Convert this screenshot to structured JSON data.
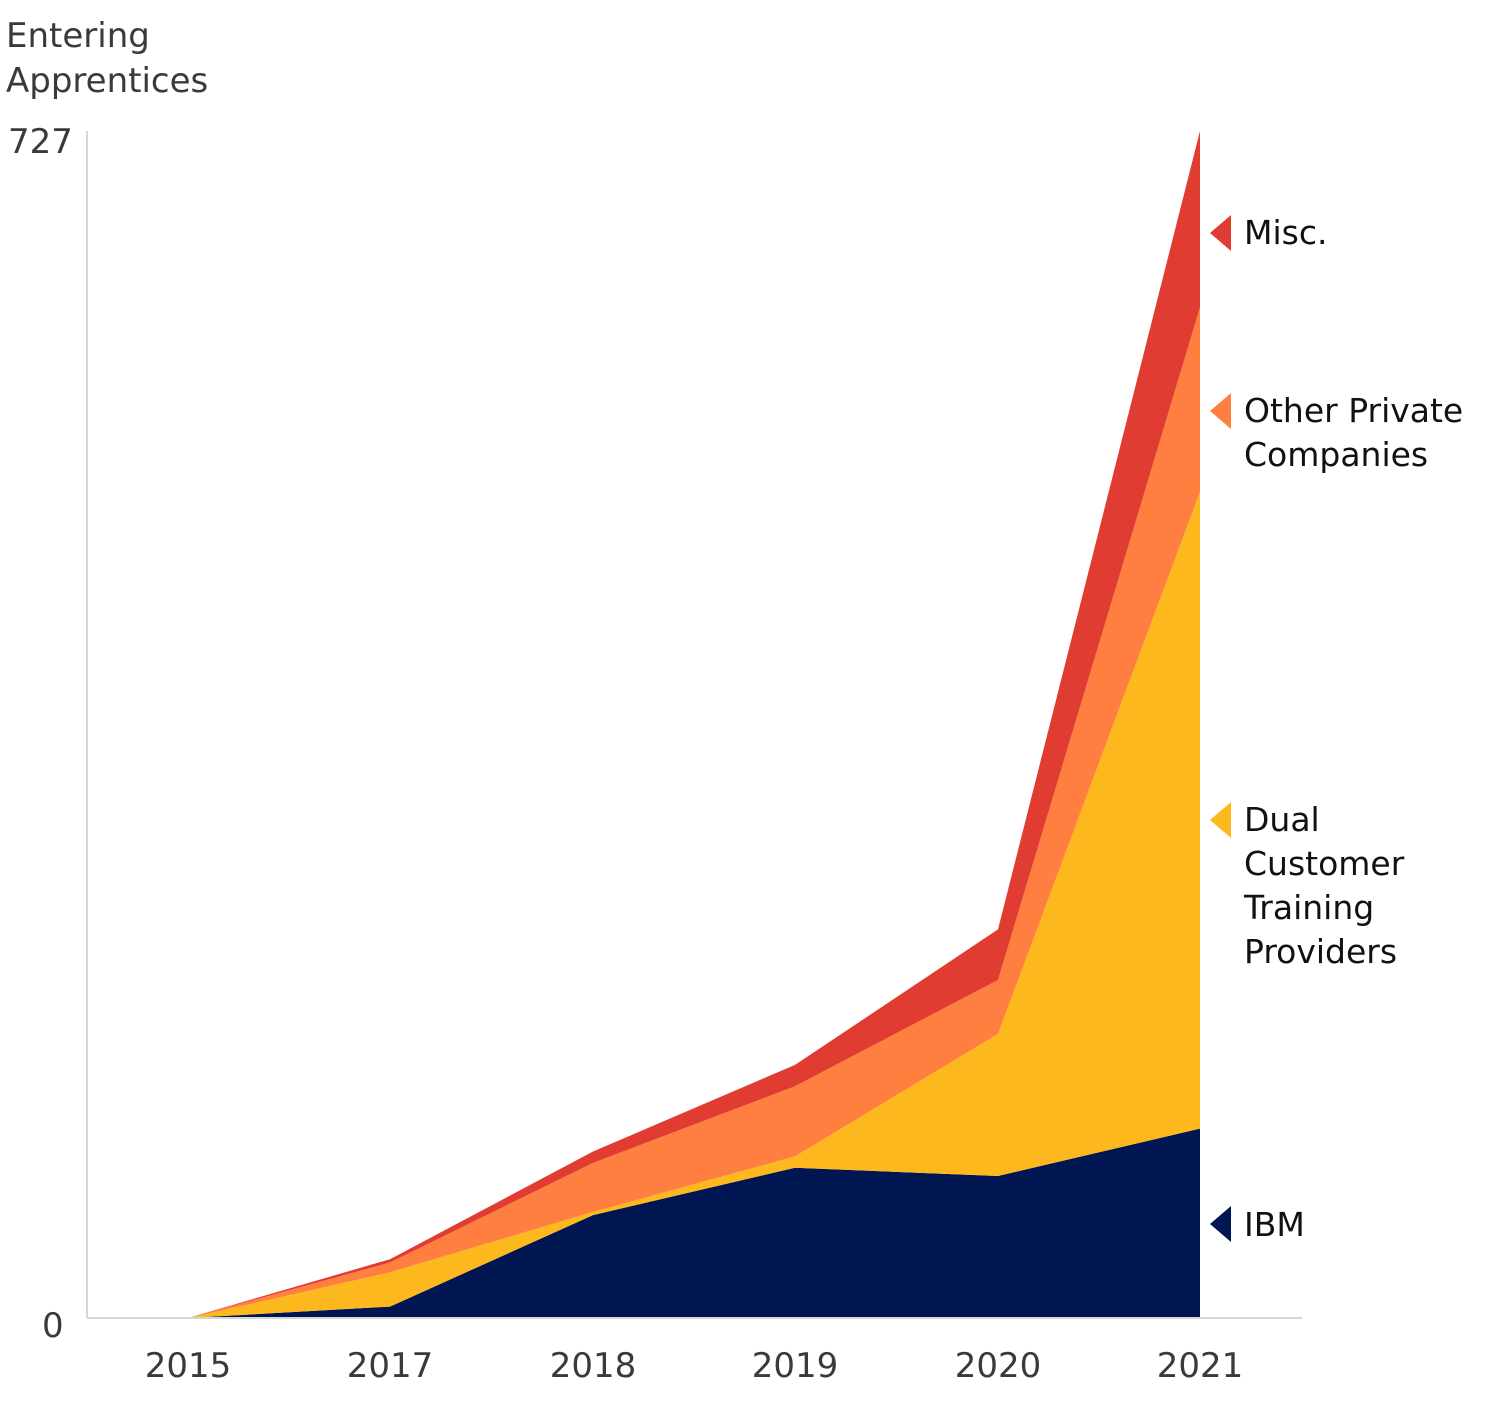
{
  "chart_data": {
    "type": "area",
    "stacked": true,
    "ylabel": "Entering Apprentices",
    "ylabel_lines": [
      "Entering",
      "Apprentices"
    ],
    "ylim": [
      0,
      727
    ],
    "y_ticks": [
      "727",
      "0"
    ],
    "categories": [
      "2015",
      "2017",
      "2018",
      "2019",
      "2020",
      "2021"
    ],
    "series": [
      {
        "name": "IBM",
        "color": "#001653",
        "values": [
          0,
          7,
          63,
          92,
          87,
          116
        ]
      },
      {
        "name": "Dual Customer Training Providers",
        "name_lines": [
          "Dual",
          "Customer",
          "Training",
          "Providers"
        ],
        "color": "#FDB81E",
        "values": [
          0,
          21,
          2,
          7,
          87,
          390
        ]
      },
      {
        "name": "Other Private Companies",
        "name_lines": [
          "Other Private",
          "Companies"
        ],
        "color": "#FE7F40",
        "values": [
          0,
          6,
          30,
          43,
          33,
          113
        ]
      },
      {
        "name": "Misc.",
        "name_lines": [
          "Misc."
        ],
        "color": "#E03C31",
        "values": [
          0,
          2,
          7,
          13,
          31,
          108
        ]
      }
    ],
    "grid": false,
    "legend": "right"
  }
}
